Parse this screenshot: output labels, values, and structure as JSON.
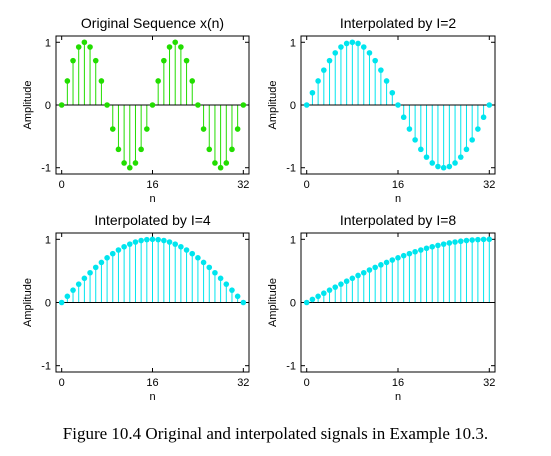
{
  "caption": "Figure 10.4 Original and interpolated signals in Example 10.3.",
  "chart_data": [
    {
      "type": "stem",
      "title": "Original Sequence x(n)",
      "xlabel": "n",
      "ylabel": "Amplitude",
      "xlim": [
        -1,
        33
      ],
      "ylim": [
        -1.1,
        1.1
      ],
      "xticks": [
        "0",
        "16",
        "32"
      ],
      "yticks": [
        "-1",
        "0",
        "1"
      ],
      "color": "#22dd00",
      "x": [
        0,
        1,
        2,
        3,
        4,
        5,
        6,
        7,
        8,
        9,
        10,
        11,
        12,
        13,
        14,
        15,
        16,
        17,
        18,
        19,
        20,
        21,
        22,
        23,
        24,
        25,
        26,
        27,
        28,
        29,
        30,
        31,
        32
      ],
      "values": [
        0,
        0.383,
        0.707,
        0.924,
        1,
        0.924,
        0.707,
        0.383,
        0,
        -0.383,
        -0.707,
        -0.924,
        -1,
        -0.924,
        -0.707,
        -0.383,
        0,
        0.383,
        0.707,
        0.924,
        1,
        0.924,
        0.707,
        0.383,
        0,
        -0.383,
        -0.707,
        -0.924,
        -1,
        -0.924,
        -0.707,
        -0.383,
        0
      ]
    },
    {
      "type": "stem",
      "title": "Interpolated by I=2",
      "xlabel": "n",
      "ylabel": "Amplitude",
      "xlim": [
        -1,
        33
      ],
      "ylim": [
        -1.1,
        1.1
      ],
      "xticks": [
        "0",
        "16",
        "32"
      ],
      "yticks": [
        "-1",
        "0",
        "1"
      ],
      "color": "#00e5ee",
      "x": [
        0,
        1,
        2,
        3,
        4,
        5,
        6,
        7,
        8,
        9,
        10,
        11,
        12,
        13,
        14,
        15,
        16,
        17,
        18,
        19,
        20,
        21,
        22,
        23,
        24,
        25,
        26,
        27,
        28,
        29,
        30,
        31,
        32
      ],
      "values": [
        0,
        0.195,
        0.383,
        0.556,
        0.707,
        0.831,
        0.924,
        0.981,
        1,
        0.981,
        0.924,
        0.831,
        0.707,
        0.556,
        0.383,
        0.195,
        0,
        -0.195,
        -0.383,
        -0.556,
        -0.707,
        -0.831,
        -0.924,
        -0.981,
        -1,
        -0.981,
        -0.924,
        -0.831,
        -0.707,
        -0.556,
        -0.383,
        -0.195,
        0
      ]
    },
    {
      "type": "stem",
      "title": "Interpolated by I=4",
      "xlabel": "n",
      "ylabel": "Amplitude",
      "xlim": [
        -1,
        33
      ],
      "ylim": [
        -1.1,
        1.1
      ],
      "xticks": [
        "0",
        "16",
        "32"
      ],
      "yticks": [
        "-1",
        "0",
        "1"
      ],
      "color": "#00e5ee",
      "x": [
        0,
        1,
        2,
        3,
        4,
        5,
        6,
        7,
        8,
        9,
        10,
        11,
        12,
        13,
        14,
        15,
        16,
        17,
        18,
        19,
        20,
        21,
        22,
        23,
        24,
        25,
        26,
        27,
        28,
        29,
        30,
        31,
        32
      ],
      "values": [
        0,
        0.098,
        0.195,
        0.29,
        0.383,
        0.471,
        0.556,
        0.634,
        0.707,
        0.773,
        0.831,
        0.882,
        0.924,
        0.957,
        0.981,
        0.995,
        1,
        0.995,
        0.981,
        0.957,
        0.924,
        0.882,
        0.831,
        0.773,
        0.707,
        0.634,
        0.556,
        0.471,
        0.383,
        0.29,
        0.195,
        0.098,
        0
      ]
    },
    {
      "type": "stem",
      "title": "Interpolated by I=8",
      "xlabel": "n",
      "ylabel": "Amplitude",
      "xlim": [
        -1,
        33
      ],
      "ylim": [
        -1.1,
        1.1
      ],
      "xticks": [
        "0",
        "16",
        "32"
      ],
      "yticks": [
        "-1",
        "0",
        "1"
      ],
      "color": "#00e5ee",
      "x": [
        0,
        1,
        2,
        3,
        4,
        5,
        6,
        7,
        8,
        9,
        10,
        11,
        12,
        13,
        14,
        15,
        16,
        17,
        18,
        19,
        20,
        21,
        22,
        23,
        24,
        25,
        26,
        27,
        28,
        29,
        30,
        31,
        32
      ],
      "values": [
        0,
        0.049,
        0.098,
        0.147,
        0.195,
        0.243,
        0.29,
        0.337,
        0.383,
        0.428,
        0.471,
        0.514,
        0.556,
        0.596,
        0.634,
        0.672,
        0.707,
        0.741,
        0.773,
        0.803,
        0.831,
        0.858,
        0.882,
        0.904,
        0.924,
        0.942,
        0.957,
        0.97,
        0.981,
        0.989,
        0.995,
        0.999,
        1
      ]
    }
  ]
}
